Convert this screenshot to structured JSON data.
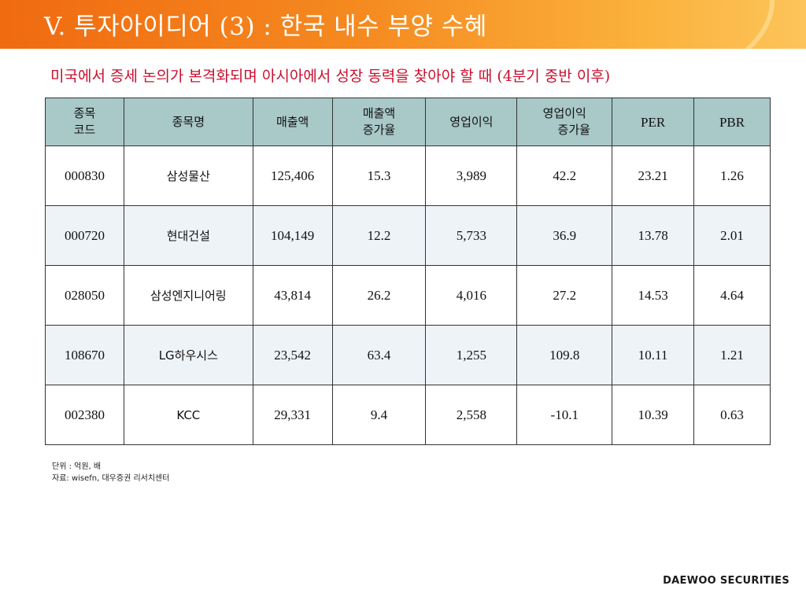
{
  "header": {
    "title": "V. 투자아이디어 (3) : 한국 내수 부양 수혜",
    "accent_color": "#f06a10"
  },
  "subtitle": "미국에서 증세 논의가 본격화되며 아시아에서 성장 동력을 찾아야 할 때 (4분기 중반 이후)",
  "table": {
    "headers": [
      [
        "종목",
        "코드"
      ],
      [
        "종목명"
      ],
      [
        "매출액"
      ],
      [
        "매출액",
        "증가율"
      ],
      [
        "영업이익"
      ],
      [
        "영업이익",
        "증가율"
      ],
      [
        "PER"
      ],
      [
        "PBR"
      ]
    ],
    "rows": [
      [
        "000830",
        "삼성물산",
        "125,406",
        "15.3",
        "3,989",
        "42.2",
        "23.21",
        "1.26"
      ],
      [
        "000720",
        "현대건설",
        "104,149",
        "12.2",
        "5,733",
        "36.9",
        "13.78",
        "2.01"
      ],
      [
        "028050",
        "삼성엔지니어링",
        "43,814",
        "26.2",
        "4,016",
        "27.2",
        "14.53",
        "4.64"
      ],
      [
        "108670",
        "LG하우시스",
        "23,542",
        "63.4",
        "1,255",
        "109.8",
        "10.11",
        "1.21"
      ],
      [
        "002380",
        "KCC",
        "29,331",
        "9.4",
        "2,558",
        "-10.1",
        "10.39",
        "0.63"
      ]
    ],
    "header_color": "#a9c8c8",
    "alt_row_color": "#eef3f8"
  },
  "footnote": {
    "unit": "단위 : 억원, 배",
    "source": "자료: wisefn, 대우증권 리서치센터"
  },
  "brand": "DAEWOO SECURITIES"
}
